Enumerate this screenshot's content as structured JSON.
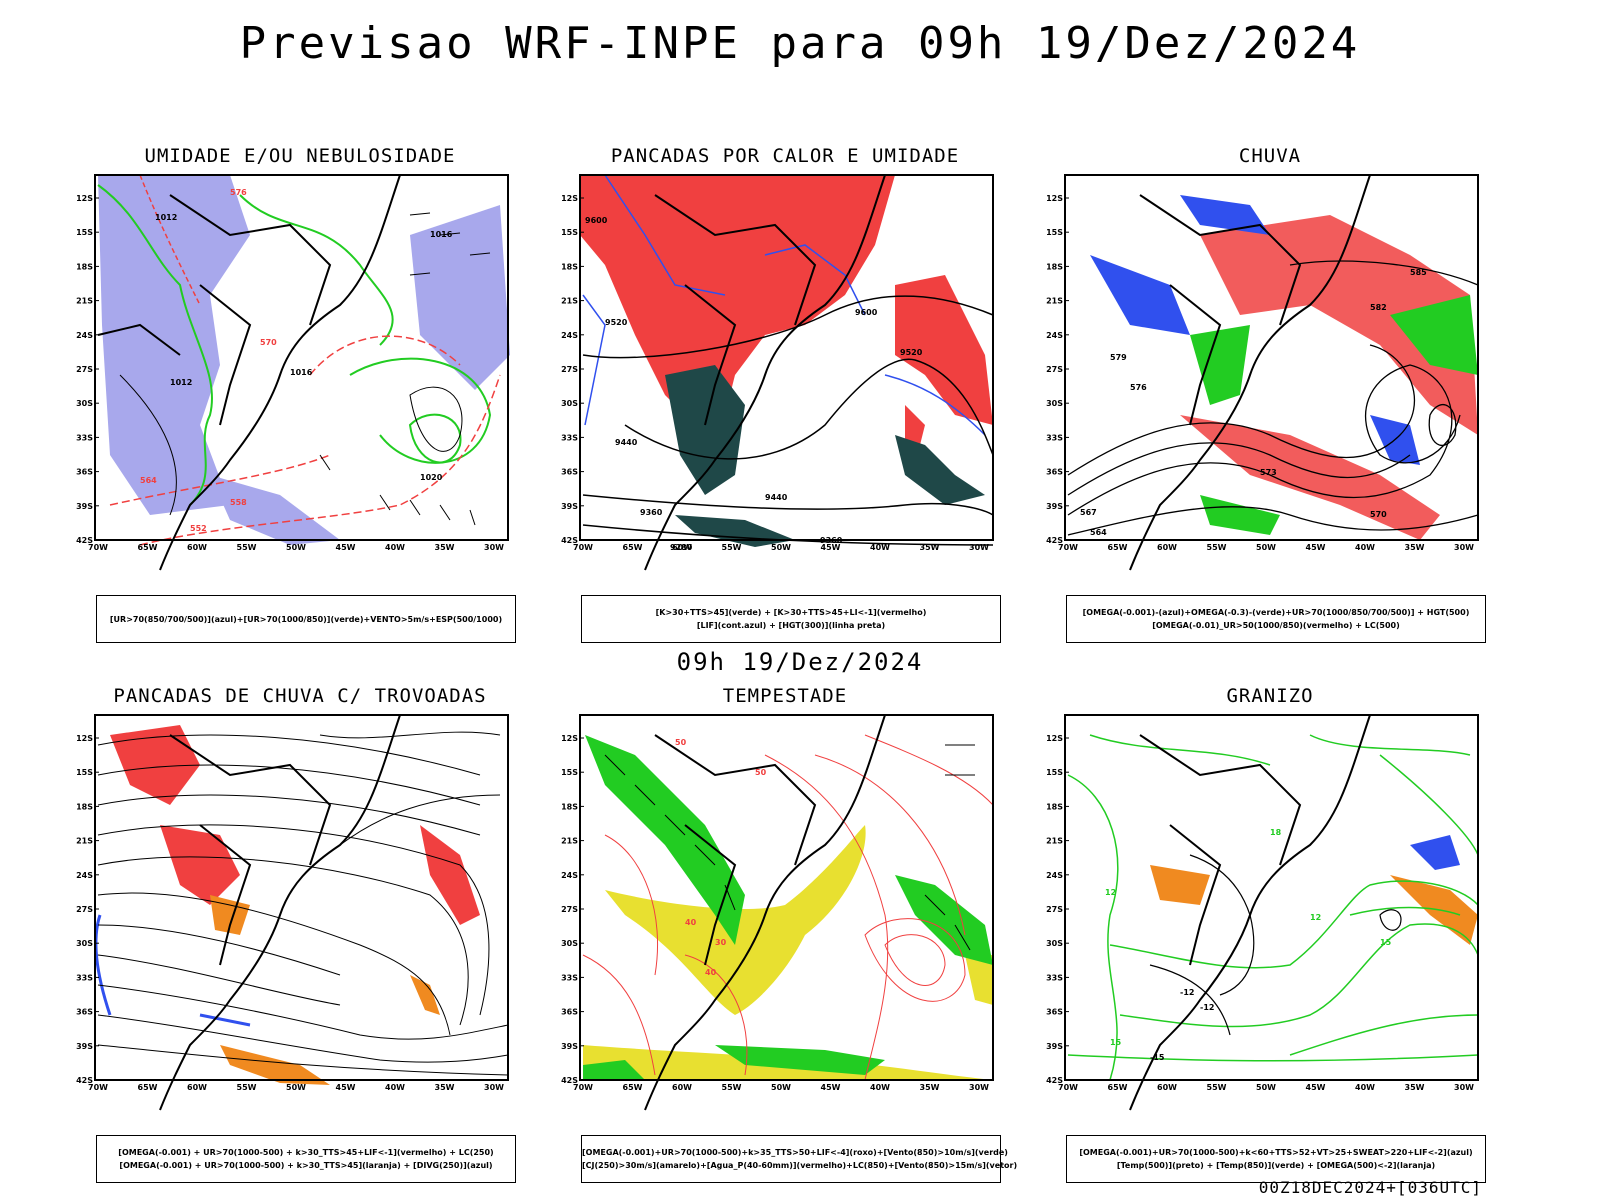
{
  "title": "Previsao WRF-INPE  para 09h 19/Dez/2024",
  "mid_title": "09h 19/Dez/2024",
  "footer": "00Z18DEC2024+[036UTC]",
  "axes": {
    "lat_labels": [
      "12S",
      "15S",
      "18S",
      "21S",
      "24S",
      "27S",
      "30S",
      "33S",
      "36S",
      "39S",
      "42S"
    ],
    "lon_labels": [
      "70W",
      "65W",
      "60W",
      "55W",
      "50W",
      "45W",
      "40W",
      "35W",
      "30W"
    ]
  },
  "colors": {
    "red": "#f04040",
    "green": "#22cc22",
    "blue": "#3050ee",
    "lavender": "#a8a8ec",
    "dark_teal": "#1f4848",
    "orange": "#f08a20",
    "yellow": "#e8e030",
    "light_red": "#f06060"
  },
  "panels": [
    {
      "id": "umidade",
      "title": "UMIDADE E/OU NEBULOSIDADE",
      "legend": [
        "[UR>70(850/700/500)](azul)+[UR>70(1000/850)](verde)+VENTO>5m/s+ESP(500/1000)"
      ],
      "contour_labels": [
        "1012",
        "1016",
        "1020",
        "576",
        "570",
        "564",
        "558",
        "552",
        "1012",
        "1016"
      ]
    },
    {
      "id": "pancadas-calor",
      "title": "PANCADAS POR CALOR E UMIDADE",
      "legend": [
        "[K>30+TTS>45](verde) + [K>30+TTS>45+LI<-1](vermelho)",
        "[LIF](cont.azul) + [HGT(300)](linha preta)"
      ],
      "contour_labels": [
        "9600",
        "9520",
        "9440",
        "9360",
        "9280",
        "9600",
        "9520",
        "9440",
        "9360"
      ]
    },
    {
      "id": "chuva",
      "title": "CHUVA",
      "legend": [
        "[OMEGA(-0.001)-(azul)+OMEGA(-0.3)-(verde)+UR>70(1000/850/700/500)] + HGT(500)",
        "[OMEGA(-0.01)_UR>50(1000/850)(vermelho) + LC(500)"
      ],
      "contour_labels": [
        "585",
        "582",
        "579",
        "576",
        "573",
        "570",
        "567",
        "564"
      ]
    },
    {
      "id": "pancadas-trovoadas",
      "title": "PANCADAS DE CHUVA C/ TROVOADAS",
      "legend": [
        "[OMEGA(-0.001) + UR>70(1000-500) + k>30_TTS>45+LIF<-1](vermelho) + LC(250)",
        "[OMEGA(-0.001) + UR>70(1000-500) + k>30_TTS>45](laranja) + [DIVG(250)](azul)"
      ],
      "contour_labels": []
    },
    {
      "id": "tempestade",
      "title": "TEMPESTADE",
      "legend": [
        "[OMEGA(-0.001)+UR>70(1000-500)+k>35_TTS>50+LIF<-4](roxo)+[Vento(850)>10m/s](verde)",
        "[CJ(250)>30m/s](amarelo)+[Agua_P(40-60mm)](vermelho)+LC(850)+[Vento(850)>15m/s](vetor)"
      ],
      "contour_labels": [
        "50",
        "40",
        "30",
        "50",
        "40"
      ]
    },
    {
      "id": "granizo",
      "title": "GRANIZO",
      "legend": [
        "[OMEGA(-0.001)+UR>70(1000-500)+k<60+TTS>52+VT>25+SWEAT>220+LIF<-2](azul)",
        "[Temp(500)](preto) + [Temp(850)](verde) + [OMEGA(500)<-2](laranja)"
      ],
      "contour_labels": [
        "-12",
        "-12",
        "-15",
        "12",
        "15",
        "18",
        "15",
        "12"
      ]
    }
  ]
}
